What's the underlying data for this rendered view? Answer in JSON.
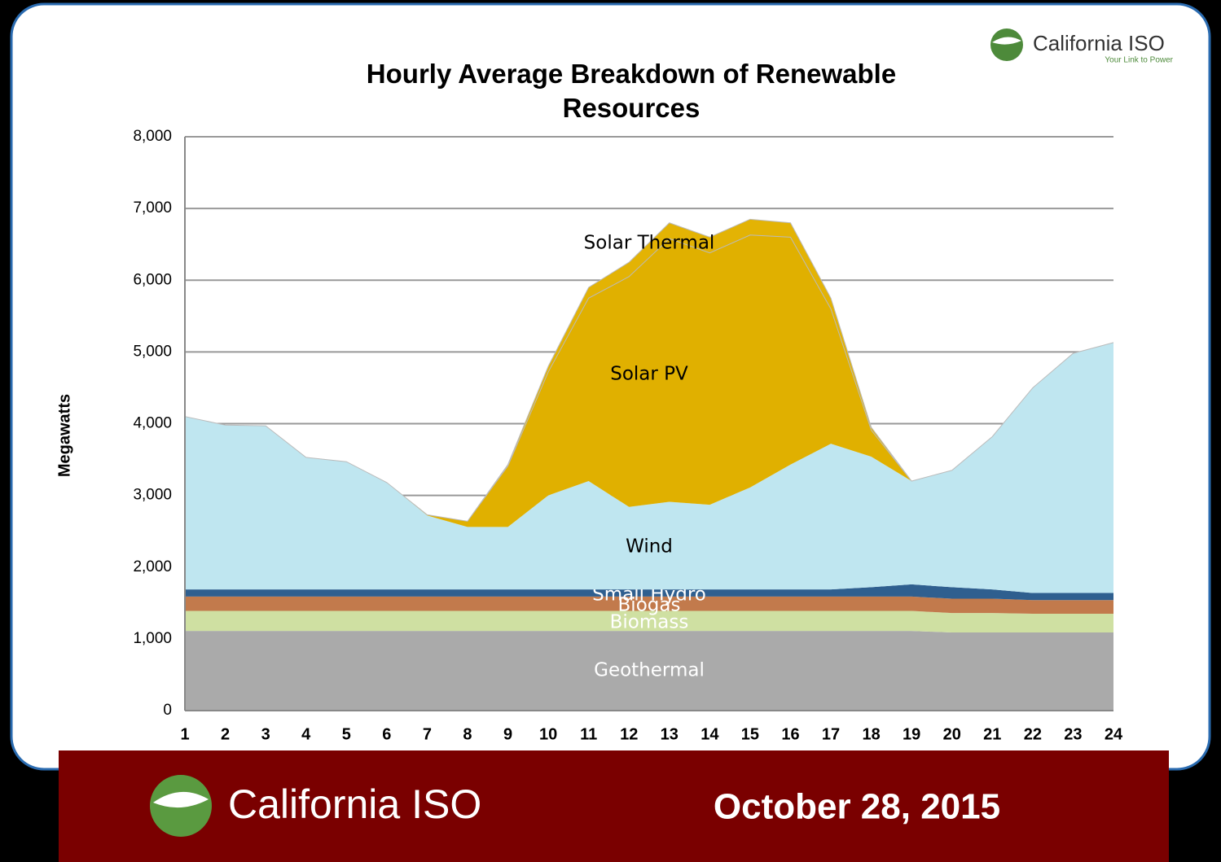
{
  "chart_data": {
    "type": "stacked_area",
    "title": "Hourly Average Breakdown of Renewable Resources",
    "ylabel": "Megawatts",
    "categories": [
      1,
      2,
      3,
      4,
      5,
      6,
      7,
      8,
      9,
      10,
      11,
      12,
      13,
      14,
      15,
      16,
      17,
      18,
      19,
      20,
      21,
      22,
      23,
      24
    ],
    "ylim": [
      0,
      8000
    ],
    "yticks": [
      {
        "value": 0,
        "label": "0"
      },
      {
        "value": 1000,
        "label": "1,000"
      },
      {
        "value": 2000,
        "label": "2,000"
      },
      {
        "value": 3000,
        "label": "3,000"
      },
      {
        "value": 4000,
        "label": "4,000"
      },
      {
        "value": 5000,
        "label": "5,000"
      },
      {
        "value": 6000,
        "label": "6,000"
      },
      {
        "value": 7000,
        "label": "7,000"
      },
      {
        "value": 8000,
        "label": "8,000"
      }
    ],
    "grid": true,
    "series": [
      {
        "name": "Geothermal",
        "color": "#aaaaaa",
        "values": [
          1110,
          1110,
          1110,
          1110,
          1110,
          1110,
          1110,
          1110,
          1110,
          1110,
          1110,
          1110,
          1110,
          1110,
          1110,
          1110,
          1110,
          1110,
          1110,
          1090,
          1090,
          1090,
          1090,
          1090
        ]
      },
      {
        "name": "Biomass",
        "color": "#cfe0a2",
        "values": [
          280,
          280,
          280,
          280,
          280,
          280,
          280,
          280,
          280,
          280,
          280,
          280,
          280,
          280,
          280,
          280,
          280,
          280,
          280,
          270,
          270,
          260,
          260,
          260
        ]
      },
      {
        "name": "Biogas",
        "color": "#c27a4c",
        "values": [
          200,
          200,
          200,
          200,
          200,
          200,
          200,
          200,
          200,
          200,
          200,
          200,
          200,
          200,
          200,
          200,
          200,
          200,
          200,
          200,
          200,
          190,
          190,
          190
        ]
      },
      {
        "name": "Small Hydro",
        "color": "#2f5f8f",
        "values": [
          100,
          100,
          100,
          100,
          100,
          100,
          100,
          100,
          100,
          100,
          100,
          100,
          100,
          100,
          100,
          100,
          100,
          130,
          170,
          160,
          130,
          100,
          100,
          100
        ]
      },
      {
        "name": "Wind",
        "color": "#bfe6f0",
        "values": [
          2410,
          2290,
          2280,
          1840,
          1780,
          1490,
          1030,
          870,
          870,
          1310,
          1510,
          1150,
          1220,
          1180,
          1420,
          1740,
          2030,
          1820,
          1440,
          1630,
          2130,
          2860,
          3340,
          3490
        ]
      },
      {
        "name": "Solar PV",
        "color": "#e0b000",
        "values": [
          0,
          0,
          0,
          0,
          0,
          0,
          10,
          80,
          850,
          1720,
          2550,
          3210,
          3670,
          3510,
          3520,
          3170,
          1880,
          370,
          0,
          0,
          0,
          0,
          0,
          0
        ]
      },
      {
        "name": "Solar Thermal",
        "color": "#e3b304",
        "values": [
          0,
          0,
          0,
          0,
          0,
          0,
          0,
          0,
          20,
          80,
          150,
          200,
          220,
          220,
          220,
          200,
          150,
          40,
          0,
          0,
          0,
          0,
          0,
          0
        ]
      }
    ]
  },
  "header": {
    "logo": "California ISO",
    "tagline": "Your Link to Power"
  },
  "footer": {
    "logo": "California ISO",
    "date": "October 28, 2015"
  }
}
